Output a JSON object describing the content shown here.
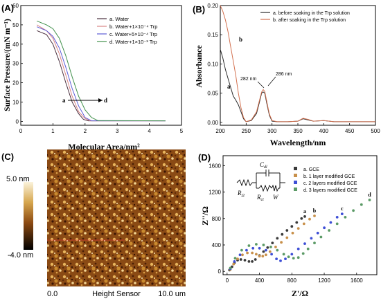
{
  "panels": {
    "a": {
      "label": "(A)",
      "ylabel": "Surface Pressure/(mN m⁻¹)",
      "xlabel": "Molecular Area/nm²",
      "xticks": [
        "0",
        "1",
        "2",
        "3",
        "4",
        "5"
      ],
      "yticks": [
        "0",
        "10",
        "20",
        "30",
        "40",
        "50",
        "60"
      ],
      "arrow_start": "a",
      "arrow_end": "d"
    },
    "b": {
      "label": "(B)",
      "ylabel": "Absorbance",
      "xlabel": "Wavelength/nm",
      "xticks": [
        "200",
        "250",
        "300",
        "350",
        "400",
        "450",
        "500"
      ],
      "yticks": [
        "0.00",
        "0.05",
        "0.10",
        "0.15",
        "0.20"
      ],
      "peak1": "282 nm",
      "peak2": "286 nm"
    },
    "c": {
      "label": "(C)",
      "scale_max": "5.0 nm",
      "scale_min": "-4.0 nm",
      "axis_start": "0.0",
      "axis_title": "Height Sensor",
      "axis_end": "10.0 um"
    },
    "d": {
      "label": "(D)",
      "ylabel": "Z''/Ω",
      "xlabel": "Z'/Ω",
      "xticks": [
        "0",
        "400",
        "800",
        "1200",
        "1600"
      ],
      "yticks": [
        "0",
        "400",
        "800",
        "1200",
        "1600"
      ],
      "circuit": {
        "cdl": "C",
        "cdl_sub": "dl",
        "rs": "R",
        "rs_sub": "Ω",
        "rct": "R",
        "rct_sub": "ct",
        "w": "W"
      }
    }
  },
  "chart_data": [
    {
      "type": "line",
      "panel": "A",
      "xlabel": "Molecular Area/nm²",
      "ylabel": "Surface Pressure/(mN m⁻¹)",
      "xlim": [
        0,
        5
      ],
      "ylim": [
        -2,
        60
      ],
      "series": [
        {
          "name": "a. Water",
          "color": "#4a2f3e",
          "x": [
            0.5,
            0.8,
            1.0,
            1.2,
            1.4,
            1.6,
            1.8,
            1.95,
            2.1,
            4.5
          ],
          "y": [
            47,
            45,
            40,
            31,
            20,
            10,
            4,
            1,
            0.3,
            0.3
          ]
        },
        {
          "name": "b. Water+1×10⁻⁴ Trp",
          "color": "#d98585",
          "x": [
            0.5,
            0.8,
            1.0,
            1.2,
            1.4,
            1.6,
            1.8,
            2.0,
            2.15,
            4.5
          ],
          "y": [
            50,
            47,
            43,
            35,
            24,
            13,
            5,
            1.5,
            0.3,
            0.3
          ]
        },
        {
          "name": "c. Water+5×10⁻⁴ Trp",
          "color": "#5a5ad6",
          "x": [
            0.5,
            0.8,
            1.0,
            1.2,
            1.4,
            1.6,
            1.8,
            2.0,
            2.2,
            4.5
          ],
          "y": [
            49,
            47,
            44,
            38,
            28,
            17,
            8,
            2,
            0.3,
            0.3
          ]
        },
        {
          "name": "d. Water+1×10⁻³ Trp",
          "color": "#3f8f4a",
          "x": [
            0.5,
            0.8,
            1.0,
            1.2,
            1.4,
            1.6,
            1.8,
            2.0,
            2.2,
            2.4,
            4.5
          ],
          "y": [
            52,
            50,
            48,
            43,
            34,
            23,
            13,
            6,
            2,
            0.4,
            0.3
          ]
        }
      ]
    },
    {
      "type": "line",
      "panel": "B",
      "xlabel": "Wavelength/nm",
      "ylabel": "Absorbance",
      "xlim": [
        200,
        500
      ],
      "ylim": [
        -0.005,
        0.2
      ],
      "series": [
        {
          "name": "a. before soaking in the Trp solution",
          "color": "#2b2b2b",
          "x": [
            200,
            205,
            210,
            215,
            220,
            225,
            230,
            235,
            240,
            245,
            250,
            260,
            270,
            275,
            280,
            283,
            286,
            290,
            295,
            300,
            310,
            330,
            350,
            360,
            370,
            380,
            400,
            420,
            450,
            500
          ],
          "y": [
            0.125,
            0.11,
            0.09,
            0.075,
            0.06,
            0.045,
            0.038,
            0.03,
            0.018,
            0.006,
            0.001,
            0.003,
            0.015,
            0.032,
            0.05,
            0.052,
            0.05,
            0.032,
            0.012,
            0.002,
            0.001,
            0.001,
            0.002,
            0.006,
            0.004,
            0.002,
            0.003,
            0.001,
            0.001,
            0.001
          ]
        },
        {
          "name": "b. after soaking in the Trp solution",
          "color": "#d2704f",
          "x": [
            200,
            205,
            210,
            215,
            220,
            225,
            230,
            235,
            240,
            245,
            250,
            260,
            270,
            275,
            280,
            283,
            286,
            290,
            295,
            300,
            310,
            330,
            350,
            360,
            370,
            380,
            400,
            420,
            450,
            500
          ],
          "y": [
            0.2,
            0.19,
            0.175,
            0.155,
            0.13,
            0.105,
            0.08,
            0.05,
            0.025,
            0.008,
            0.001,
            0.004,
            0.018,
            0.035,
            0.052,
            0.056,
            0.053,
            0.035,
            0.014,
            0.003,
            0.001,
            0.001,
            0.002,
            0.007,
            0.005,
            0.002,
            0.003,
            0.001,
            0.001,
            0.001
          ]
        }
      ]
    },
    {
      "type": "heatmap",
      "panel": "C",
      "colorbar": {
        "max": "5.0 nm",
        "min": "-4.0 nm"
      },
      "x_range": [
        "0.0",
        "10.0 um"
      ]
    },
    {
      "type": "scatter",
      "panel": "D",
      "xlabel": "Z'/Ω",
      "ylabel": "Z''/Ω",
      "xlim": [
        -50,
        1850
      ],
      "ylim": [
        -50,
        1750
      ],
      "series": [
        {
          "name": "a. GCE",
          "tag": "a",
          "color": "#3a3a3a",
          "x": [
            30,
            60,
            90,
            130,
            170,
            220,
            270,
            310,
            350,
            400,
            450,
            500,
            560,
            620,
            680,
            740,
            800,
            860,
            920,
            960
          ],
          "y": [
            20,
            70,
            130,
            170,
            180,
            170,
            150,
            150,
            180,
            240,
            300,
            360,
            430,
            500,
            560,
            620,
            680,
            740,
            800,
            830
          ]
        },
        {
          "name": "b. 1 layer modified GCE",
          "tag": "b",
          "color": "#c8904a",
          "x": [
            40,
            80,
            130,
            190,
            250,
            310,
            360,
            400,
            440,
            480,
            530,
            600,
            670,
            740,
            810,
            880,
            950,
            1020,
            1080
          ],
          "y": [
            30,
            110,
            190,
            250,
            280,
            280,
            260,
            230,
            230,
            250,
            300,
            370,
            440,
            510,
            580,
            650,
            720,
            790,
            840
          ]
        },
        {
          "name": "c. 2 layers modified GCE",
          "tag": "c",
          "color": "#3e4fd6",
          "x": [
            40,
            90,
            160,
            240,
            320,
            400,
            480,
            550,
            610,
            660,
            720,
            800,
            880,
            960,
            1040,
            1120,
            1200,
            1280,
            1360,
            1420
          ],
          "y": [
            40,
            150,
            250,
            320,
            350,
            350,
            320,
            260,
            190,
            160,
            190,
            260,
            340,
            420,
            500,
            580,
            660,
            740,
            820,
            870
          ]
        },
        {
          "name": "d. 3 layers modified GCE",
          "tag": "d",
          "color": "#5b9a66",
          "x": [
            40,
            100,
            180,
            270,
            360,
            450,
            540,
            620,
            700,
            760,
            820,
            880,
            940,
            1000,
            1080,
            1160,
            1260,
            1360,
            1460,
            1560,
            1660,
            1760
          ],
          "y": [
            50,
            200,
            320,
            390,
            410,
            400,
            370,
            320,
            260,
            220,
            200,
            210,
            270,
            340,
            430,
            520,
            620,
            720,
            820,
            920,
            1010,
            1080
          ]
        }
      ]
    }
  ]
}
